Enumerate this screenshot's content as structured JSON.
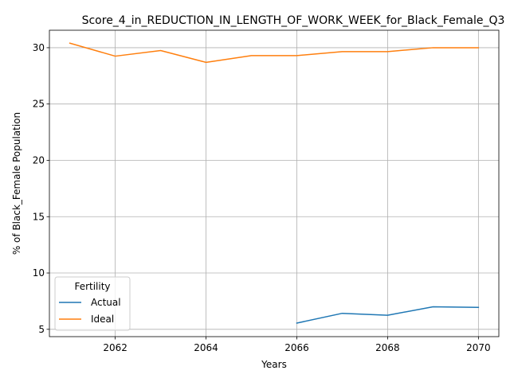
{
  "chart_data": {
    "type": "line",
    "title": "Score_4_in_REDUCTION_IN_LENGTH_OF_WORK_WEEK_for_Black_Female_Q3",
    "xlabel": "Years",
    "ylabel": "% of Black_Female Population",
    "xlim": [
      2060.55,
      2070.45
    ],
    "ylim": [
      4.35,
      31.55
    ],
    "xticks": [
      2062,
      2064,
      2066,
      2068,
      2070
    ],
    "yticks": [
      5,
      10,
      15,
      20,
      25,
      30
    ],
    "grid": true,
    "legend": {
      "title": "Fertility",
      "placement": "lower-left"
    },
    "series": [
      {
        "name": "Actual",
        "color": "#1f77b4",
        "x": [
          2066,
          2067,
          2068,
          2069,
          2070
        ],
        "values": [
          5.55,
          6.42,
          6.25,
          7.0,
          6.95
        ]
      },
      {
        "name": "Ideal",
        "color": "#ff7f0e",
        "x": [
          2061,
          2062,
          2063,
          2064,
          2065,
          2066,
          2067,
          2068,
          2069,
          2070
        ],
        "values": [
          30.4,
          29.25,
          29.75,
          28.7,
          29.3,
          29.3,
          29.65,
          29.65,
          30.0,
          30.0
        ]
      }
    ]
  }
}
